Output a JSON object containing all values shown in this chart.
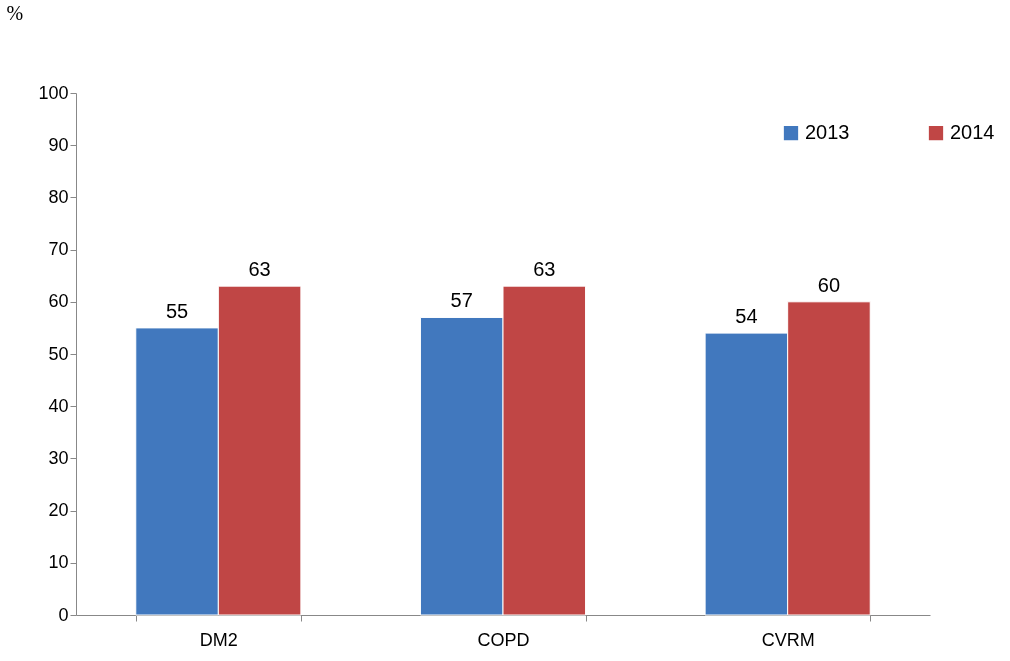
{
  "chart_data": {
    "type": "bar",
    "ylabel": "%",
    "categories": [
      "DM2",
      "COPD",
      "CVRM"
    ],
    "series": [
      {
        "name": "2013",
        "color": "#4178be",
        "values": [
          55,
          57,
          54
        ]
      },
      {
        "name": "2014",
        "color": "#c04645",
        "values": [
          63,
          63,
          60
        ]
      }
    ],
    "ylim": [
      0,
      100
    ],
    "yticks": [
      0,
      10,
      20,
      30,
      40,
      50,
      60,
      70,
      80,
      90,
      100
    ],
    "data_labels": true,
    "legend": "top right",
    "grid": false
  }
}
